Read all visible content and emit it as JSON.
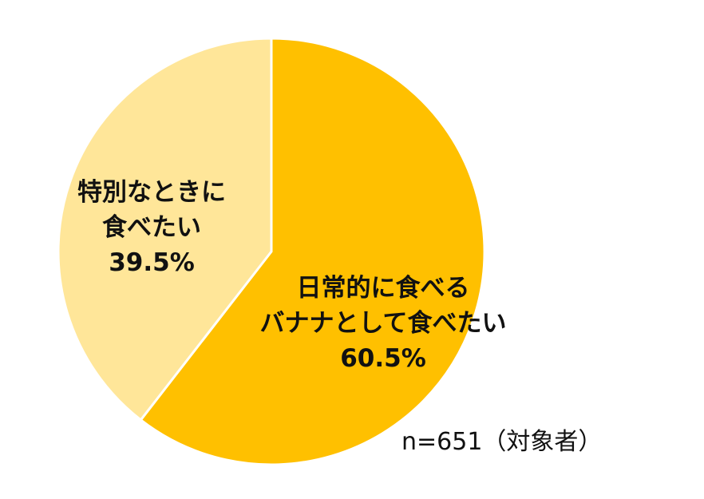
{
  "chart_data": {
    "type": "pie",
    "categories": [
      "日常的に食べる\nバナナとして食べたい",
      "特別なときに\n食べたい"
    ],
    "values": [
      60.5,
      39.5
    ],
    "value_labels": [
      "60.5%",
      "39.5%"
    ],
    "colors": [
      "#FFC000",
      "#FFE699"
    ],
    "annotation": "n=651（対象者）"
  }
}
